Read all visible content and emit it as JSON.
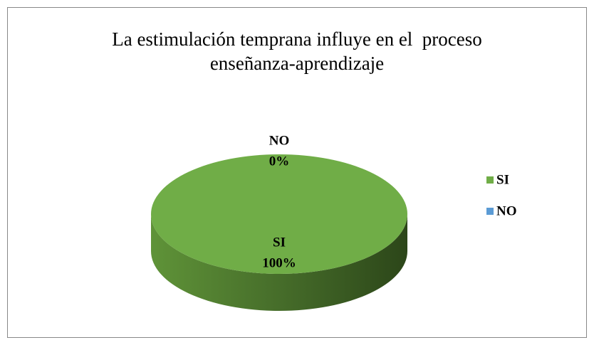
{
  "chart_data": {
    "type": "pie",
    "title": "La estimulación temprana influye en el  proceso enseñanza-aprendizaje",
    "categories": [
      "SI",
      "NO"
    ],
    "values": [
      100,
      0
    ],
    "value_labels": [
      "100%",
      "0%"
    ],
    "colors": [
      "#70ad47",
      "#5b9bd5"
    ],
    "legend": "right",
    "three_d": true
  }
}
